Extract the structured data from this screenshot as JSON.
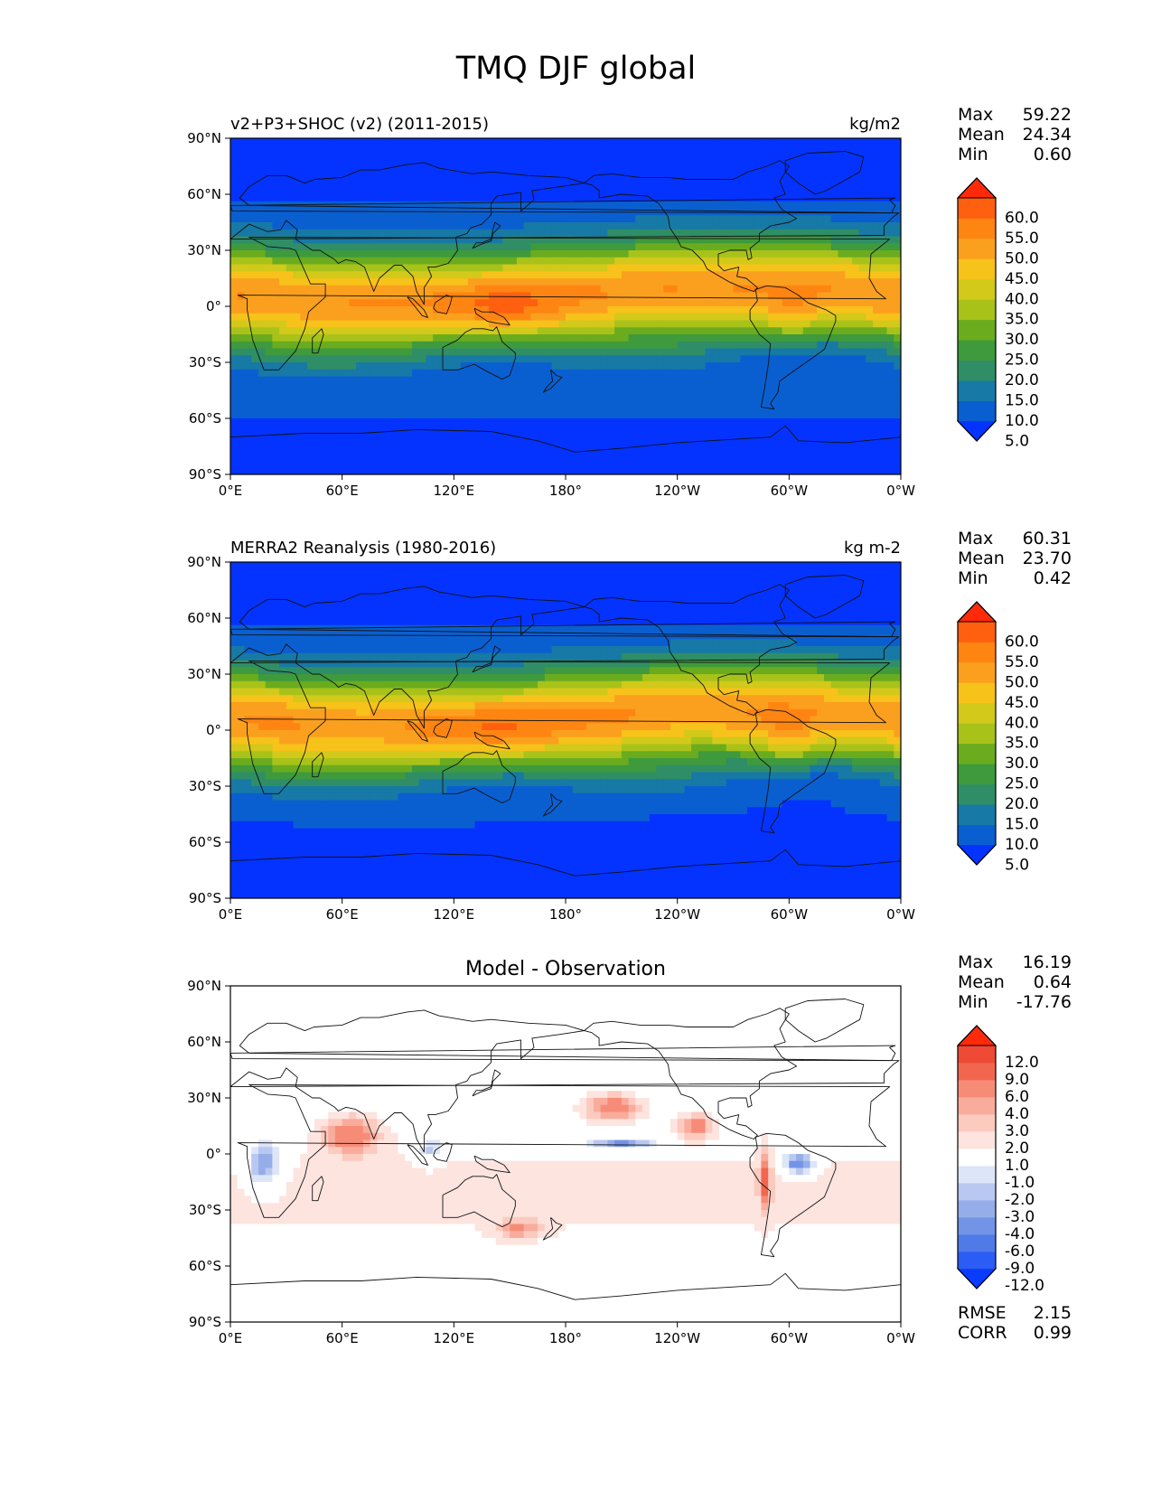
{
  "figure": {
    "title": "TMQ DJF global"
  },
  "axes": {
    "lat_ticks": [
      "90°N",
      "60°N",
      "30°N",
      "0°",
      "30°S",
      "60°S",
      "90°S"
    ],
    "lon_ticks": [
      "0°E",
      "60°E",
      "120°E",
      "180°",
      "120°W",
      "60°W",
      "0°W"
    ]
  },
  "stat_labels": {
    "max": "Max",
    "mean": "Mean",
    "min": "Min",
    "rmse": "RMSE",
    "corr": "CORR"
  },
  "panels": [
    {
      "id": "model",
      "left_title": "v2+P3+SHOC (v2) (2011-2015)",
      "right_title": "kg/m2",
      "center_title": "",
      "stats": {
        "max": "59.22",
        "mean": "24.34",
        "min": "0.60"
      },
      "colorbar": {
        "labels": [
          "60.0",
          "55.0",
          "50.0",
          "45.0",
          "40.0",
          "35.0",
          "30.0",
          "25.0",
          "20.0",
          "15.0",
          "10.0",
          "5.0"
        ],
        "colors": [
          "#0433ff",
          "#0a5fd0",
          "#1779a5",
          "#2f8e66",
          "#3e9a3c",
          "#6aac1e",
          "#a8c21a",
          "#d2c91a",
          "#f7c21a",
          "#fba01e",
          "#ff8512",
          "#ff6010",
          "#ff2a0a"
        ]
      }
    },
    {
      "id": "obs",
      "left_title": "MERRA2 Reanalysis (1980-2016)",
      "right_title": "kg m-2",
      "center_title": "",
      "stats": {
        "max": "60.31",
        "mean": "23.70",
        "min": "0.42"
      },
      "colorbar": {
        "labels": [
          "60.0",
          "55.0",
          "50.0",
          "45.0",
          "40.0",
          "35.0",
          "30.0",
          "25.0",
          "20.0",
          "15.0",
          "10.0",
          "5.0"
        ],
        "colors": [
          "#0433ff",
          "#0a5fd0",
          "#1779a5",
          "#2f8e66",
          "#3e9a3c",
          "#6aac1e",
          "#a8c21a",
          "#d2c91a",
          "#f7c21a",
          "#fba01e",
          "#ff8512",
          "#ff6010",
          "#ff2a0a"
        ]
      }
    },
    {
      "id": "diff",
      "left_title": "",
      "right_title": "",
      "center_title": "Model - Observation",
      "stats": {
        "max": "16.19",
        "mean": "0.64",
        "min": "-17.76"
      },
      "extra_stats": {
        "rmse": "2.15",
        "corr": "0.99"
      },
      "colorbar": {
        "labels": [
          "12.0",
          "9.0",
          "6.0",
          "4.0",
          "3.0",
          "2.0",
          "1.0",
          "-1.0",
          "-2.0",
          "-3.0",
          "-4.0",
          "-6.0",
          "-9.0",
          "-12.0"
        ],
        "colors": [
          "#0a3cff",
          "#2b5cf5",
          "#4f7ae8",
          "#7393e6",
          "#95ade9",
          "#b9c8f0",
          "#dde5f8",
          "#ffffff",
          "#fde4df",
          "#fccabf",
          "#f9ac9c",
          "#f68c78",
          "#f2664f",
          "#ee4a35",
          "#ff2a0a"
        ]
      }
    }
  ]
}
